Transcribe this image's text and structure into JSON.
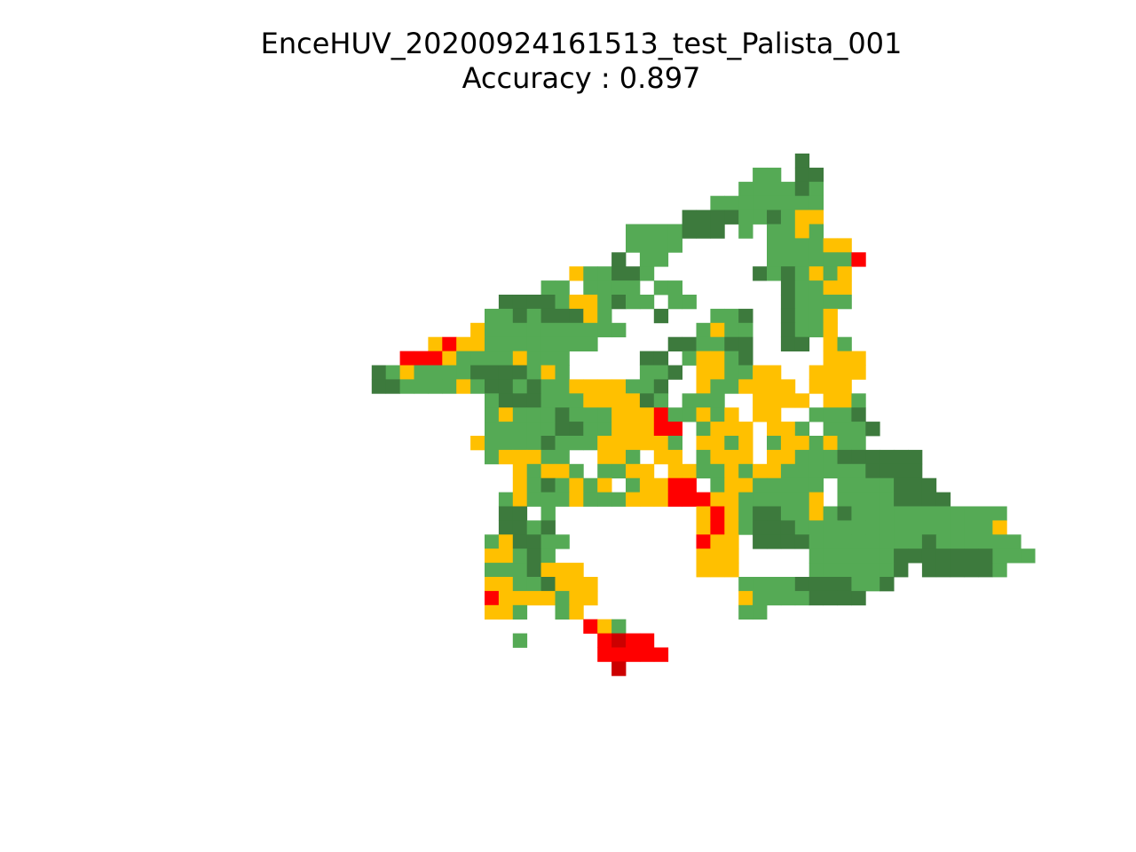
{
  "chart_data": {
    "type": "heatmap",
    "title": "EnceHUV_20200924161513_test_Palista_001",
    "subtitle": "Accuracy : 0.897",
    "grid": false,
    "axes_visible": false,
    "colors": {
      "G": "#55aa55",
      "D": "#3d7a3d",
      "Y": "#ffc000",
      "R": "#ff0000",
      "K": "#cc0000"
    },
    "rows": [
      "...................................................................",
      "...................................................................",
      "...................................................................",
      "...................................................................",
      "...................................................................",
      "...................................................................",
      "...................................................................",
      "...................................................................",
      "...................................................................",
      "...................................................................",
      "..........................................D........................",
      ".......................................GG.DD.......................",
      "......................................GGGGDG.......................",
      "....................................GGGGGGGG.......................",
      "..................................DDDDGGDGYY.......................",
      "..............................GGGGDDD.G.GGYG.......................",
      "..............................GGGG......GGGGYY.....................",
      ".............................D.GG.......GGGGGGR....................",
      "..........................YGGDDG.......DGDGYGY.....................",
      "........................GG.GGGG.GG.......DGGYY.....................",
      ".....................DDDDGYYGDGG.GG......DGGGG.....................",
      "....................GGDGDDDYG...D...GGD..DGGY......................",
      "...................YGGGGGGGGGG.....GYGG..DGGY......................",
      "................YRYYGGGGGGGG.....DDGGDD..DD.YG.....................",
      "..............RRRYGGGGYGGG.....DD.GYYGD.....YYY....................",
      "............DGYGGGGDDDDGYG.....GGD.YYGGYY..YYYY....................",
      "............DDGGGGYGDDGDGGYYYYGGD..YGGYYYY.YYY.....................",
      "....................GDDDGGGYYYYDG.GGG..YYYY.YYG....................",
      "....................GYGGGDGGGYYYRGGYGY.YY..GGGD....................",
      "....................GGGGGDDGGYYYRR.GYYY.YYG.GGGD...................",
      "...................YGGGGDGGGYYYYYG.YYGY.GYYGYGG....................",
      "....................GYYYGG..YYG.YY.GYYY.YYGGGDDDDDD................",
      "......................YGYYG.GGYY.YYGGYGYYGGGGGGDDDD................",
      "......................YGDGYGY.GYYRR.GYYGGGGG.GGGGDDD................",
      ".....................GYGGGYGGGYYYRRRYYGGGGGY.GGGGDDDD...............",
      ".....................DD.G..........YRYGDDGGYGDGGGGGGGGGGG...........",
      ".....................DDGD..........YRYGDDDGGGGGGGGGGGGGGY...........",
      "....................GYDDGG.........RYY.DDDDGGGGGGGGDGGGGGG..........",
      "....................YYGDG..........YYY.....GGGGGGDDDDDDDGGG.........",
      "....................GGGDYYY........YYY.....GGGGGGD.DDDDDG...........",
      "....................YYGGDYYY..........GGGGDDDDGGD..................",
      "....................RYYYYGYY..........YGGGGDDDD....................",
      "....................YYG..GY...........GG...........................",
      "...........................RYG.....................................",
      "......................G.....RKRR...................................",
      "............................RRRRR..................................",
      ".............................K.....................................",
      "...................................................................",
      "...................................................................",
      "..................................................................."
    ]
  }
}
